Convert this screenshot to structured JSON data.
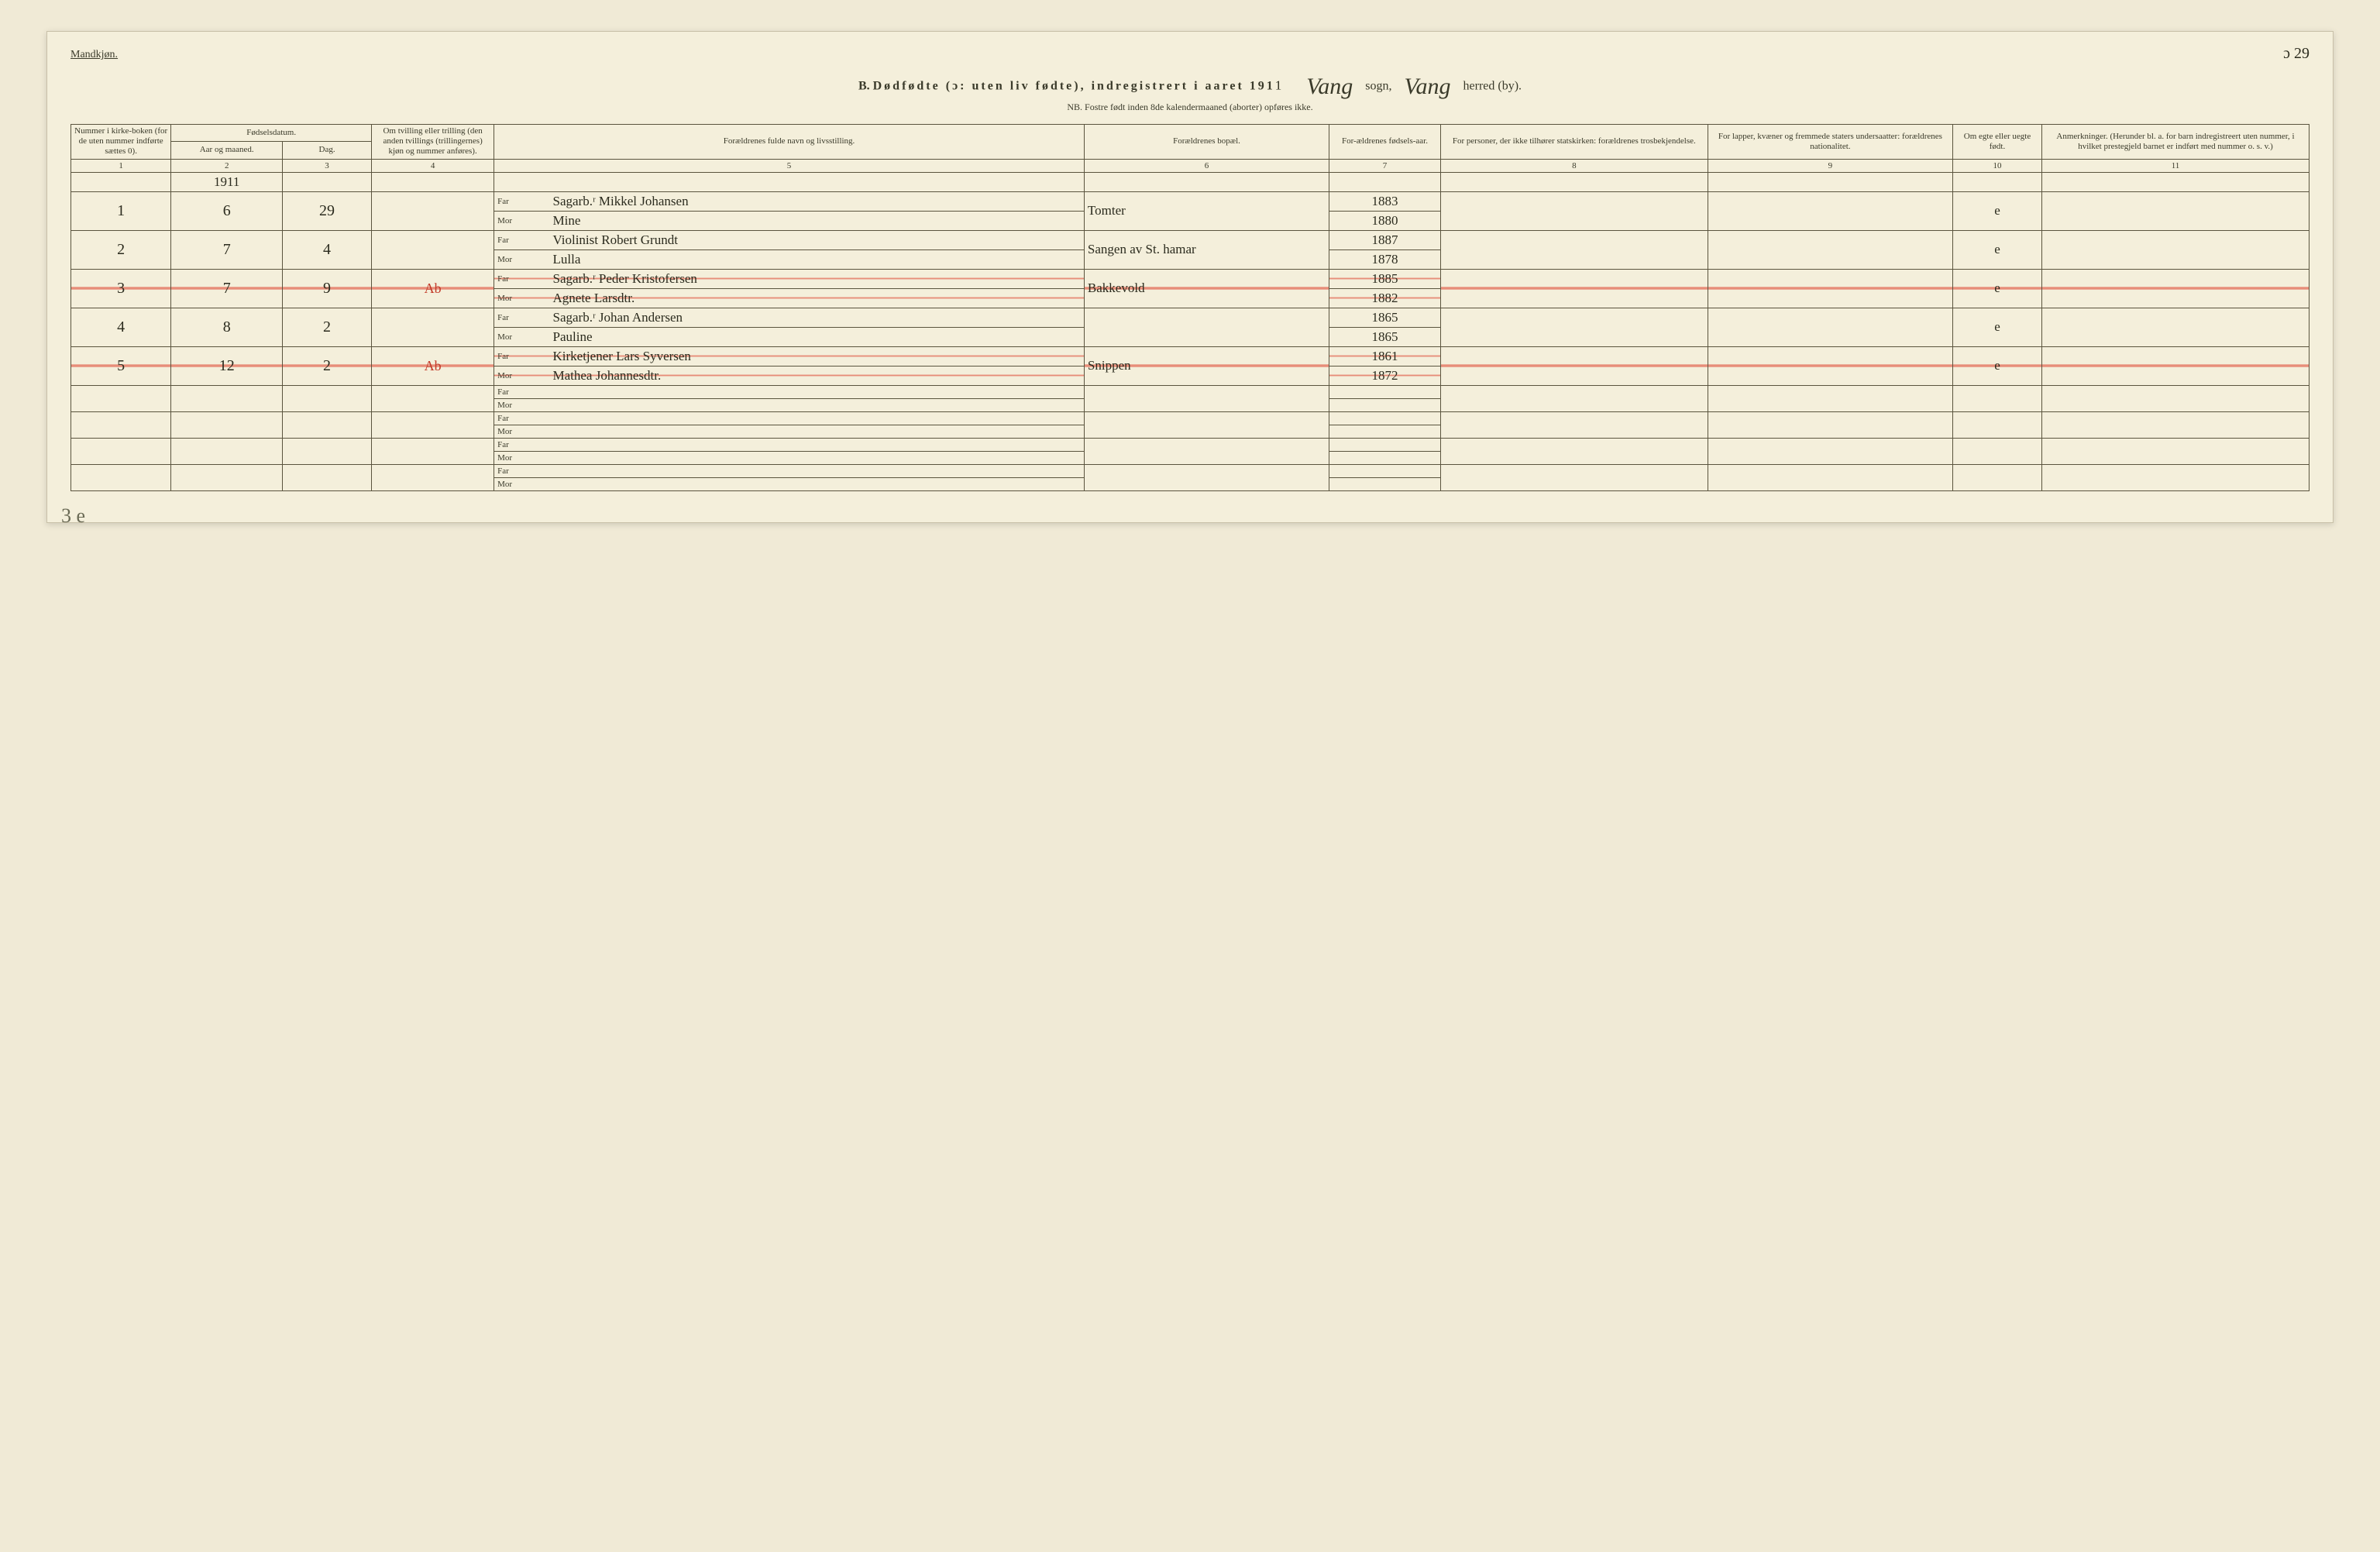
{
  "header": {
    "gender_label": "Mandkjøn.",
    "title_prefix": "B.",
    "title_main": "Dødfødte (ɔ: uten liv fødte), indregistrert i aaret 191",
    "year_suffix": "1",
    "parish_label": "sogn,",
    "district_label": "herred (by).",
    "parish_name": "Vang",
    "district_name": "Vang",
    "sub_note": "NB. Fostre født inden 8de kalendermaaned (aborter) opføres ikke.",
    "page_corner": "ɔ 29"
  },
  "columns": {
    "c1": "Nummer i kirke-boken (for de uten nummer indførte sættes 0).",
    "c2a": "Fødselsdatum.",
    "c2": "Aar og maaned.",
    "c3": "Dag.",
    "c4": "Om tvilling eller trilling (den anden tvillings (trillingernes) kjøn og nummer anføres).",
    "c5": "Forældrenes fulde navn og livsstilling.",
    "c6": "Forældrenes bopæl.",
    "c7": "For-ældrenes fødsels-aar.",
    "c8": "For personer, der ikke tilhører statskirken: forældrenes trosbekjendelse.",
    "c9": "For lapper, kvæner og fremmede staters undersaatter: forældrenes nationalitet.",
    "c10": "Om egte eller uegte født.",
    "c11": "Anmerkninger. (Herunder bl. a. for barn indregistreert uten nummer, i hvilket prestegjeld barnet er indført med nummer o. s. v.)",
    "far": "Far",
    "mor": "Mor",
    "nums": [
      "1",
      "2",
      "3",
      "4",
      "5",
      "6",
      "7",
      "8",
      "9",
      "10",
      "11"
    ]
  },
  "year_header": "1911",
  "rows": [
    {
      "no": "1",
      "month": "6",
      "day": "29",
      "twin": "",
      "far": "Sagarb.ʳ Mikkel Johansen",
      "mor": "Mine",
      "residence": "Tomter",
      "far_year": "1883",
      "mor_year": "1880",
      "legit": "e",
      "struck": false
    },
    {
      "no": "2",
      "month": "7",
      "day": "4",
      "twin": "",
      "far": "Violinist Robert Grundt",
      "mor": "Lulla",
      "residence": "Sangen av St. hamar",
      "far_year": "1887",
      "mor_year": "1878",
      "legit": "e",
      "struck": false
    },
    {
      "no": "3",
      "month": "7",
      "day": "9",
      "twin": "Ab",
      "far": "Sagarb.ʳ Peder Kristofersen",
      "mor": "Agnete Larsdtr.",
      "residence": "Bakkevold",
      "far_year": "1885",
      "mor_year": "1882",
      "legit": "e",
      "struck": true
    },
    {
      "no": "4",
      "month": "8",
      "day": "2",
      "twin": "",
      "far": "Sagarb.ʳ Johan Andersen",
      "mor": "Pauline",
      "residence": "",
      "far_year": "1865",
      "mor_year": "1865",
      "legit": "e",
      "struck": false
    },
    {
      "no": "5",
      "month": "12",
      "day": "2",
      "twin": "Ab",
      "far": "Kirketjener Lars Syversen",
      "mor": "Mathea Johannesdtr.",
      "residence": "Snippen",
      "far_year": "1861",
      "mor_year": "1872",
      "legit": "e",
      "struck": true
    }
  ],
  "margin_note": "3 e",
  "empty_rows": 4
}
